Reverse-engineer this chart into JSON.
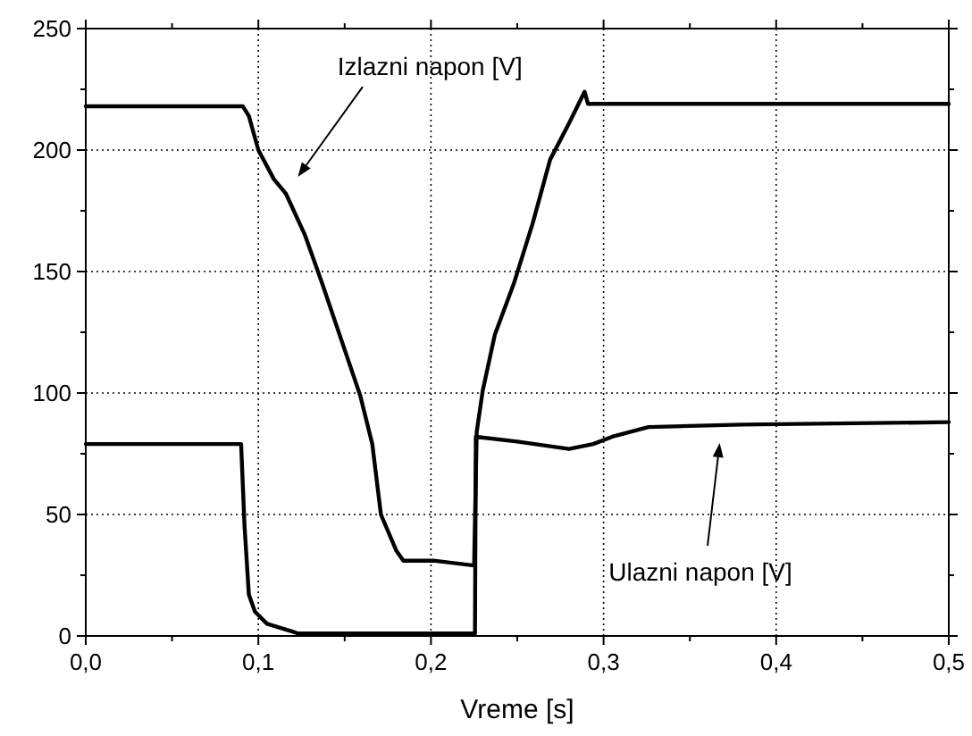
{
  "chart_data": {
    "type": "line",
    "xlabel": "Vreme [s]",
    "xlim": [
      0,
      0.5
    ],
    "xticks": [
      {
        "value": 0,
        "label": "0,0"
      },
      {
        "value": 0.05,
        "label": null
      },
      {
        "value": 0.1,
        "label": "0,1"
      },
      {
        "value": 0.15,
        "label": null
      },
      {
        "value": 0.2,
        "label": "0,2"
      },
      {
        "value": 0.25,
        "label": null
      },
      {
        "value": 0.3,
        "label": "0,3"
      },
      {
        "value": 0.35,
        "label": null
      },
      {
        "value": 0.4,
        "label": "0,4"
      },
      {
        "value": 0.45,
        "label": null
      },
      {
        "value": 0.5,
        "label": "0,5"
      }
    ],
    "ylim": [
      0,
      250
    ],
    "yticks": [
      0,
      {
        "value": 25,
        "label": null
      },
      50,
      {
        "value": 75,
        "label": null
      },
      100,
      {
        "value": 125,
        "label": null
      },
      150,
      {
        "value": 175,
        "label": null
      },
      200,
      {
        "value": 225,
        "label": null
      },
      250
    ],
    "grid": true,
    "line_style": "solid",
    "marker": "none",
    "series": [
      {
        "color": "#000000",
        "x": [
          0,
          0.091,
          0.0945,
          0.1,
          0.109,
          0.116,
          0.127,
          0.137,
          0.148,
          0.159,
          0.166,
          0.171,
          0.18,
          0.184,
          0.2015,
          0.225,
          0.2265,
          0.23,
          0.237,
          0.248,
          0.259,
          0.269,
          0.28,
          0.289,
          0.291,
          0.5
        ],
        "values": [
          218,
          218,
          214,
          200,
          188,
          182,
          165,
          145,
          122,
          99,
          79,
          50,
          35,
          31,
          31,
          29,
          84,
          101,
          124,
          145,
          170,
          196,
          211,
          224,
          219,
          219
        ]
      },
      {
        "color": "#000000",
        "x": [
          0,
          0.09,
          0.092,
          0.0945,
          0.098,
          0.105,
          0.119,
          0.123,
          0.2255,
          0.226,
          0.25,
          0.28,
          0.294,
          0.305,
          0.326,
          0.38,
          0.5
        ],
        "values": [
          79,
          79,
          45,
          17,
          10,
          5,
          2,
          1,
          1,
          82,
          80,
          77,
          79,
          82,
          86,
          87,
          88
        ]
      }
    ],
    "annotations": [
      "Izlazni napon [V]",
      "Ulazni napon [V]"
    ]
  }
}
